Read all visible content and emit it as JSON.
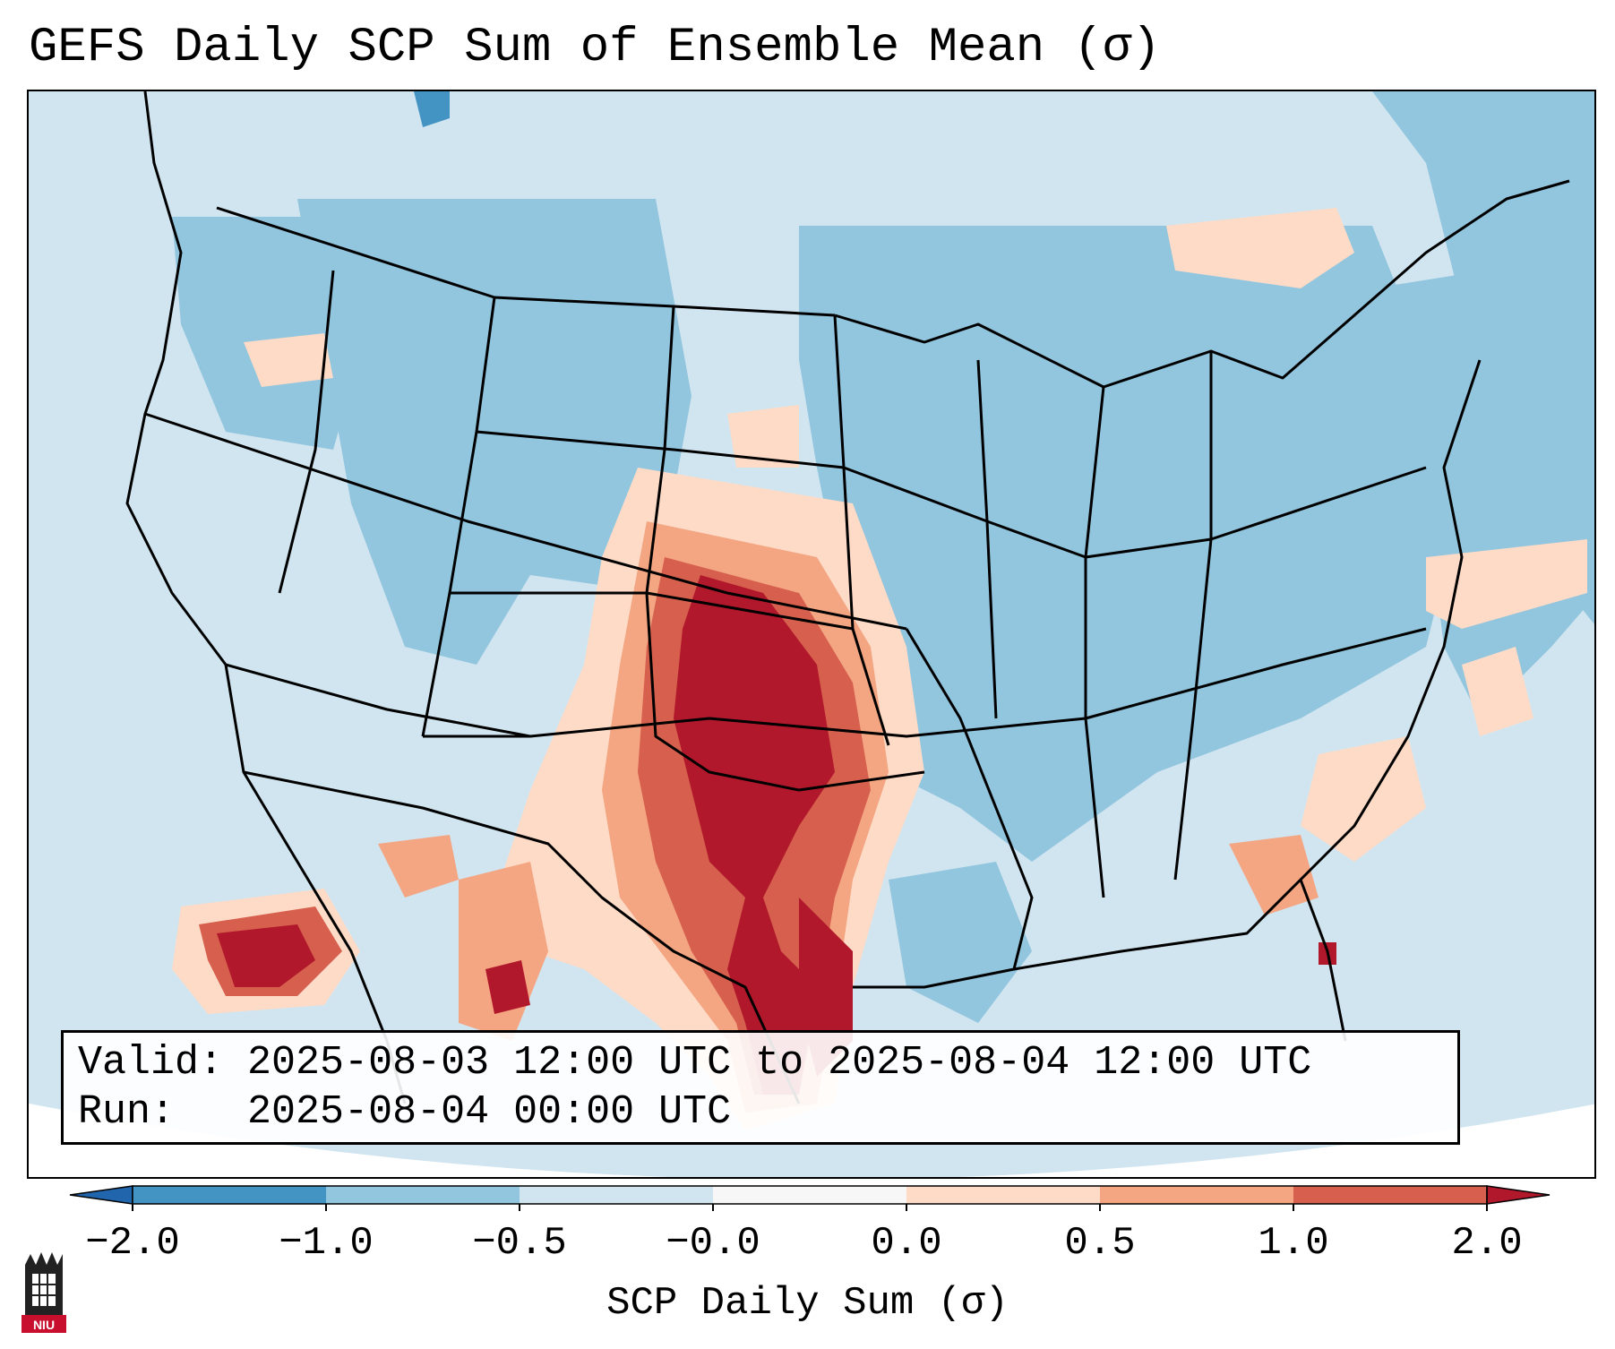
{
  "title": "GEFS Daily SCP Sum of Ensemble Mean (σ)",
  "info": {
    "valid_label": "Valid:",
    "valid_value": "2025-08-03 12:00 UTC to 2025-08-04 12:00 UTC",
    "run_label": "Run:",
    "run_value": "2025-08-04 00:00 UTC"
  },
  "colorbar": {
    "label": "SCP Daily Sum (σ)",
    "ticks": [
      "−2.0",
      "−1.0",
      "−0.5",
      "−0.0",
      "0.0",
      "0.5",
      "1.0",
      "2.0"
    ],
    "bins": [
      {
        "range": "< -2.0",
        "color": "#2166ac"
      },
      {
        "range": "-2.0 to -1.0",
        "color": "#4393c3"
      },
      {
        "range": "-1.0 to -0.5",
        "color": "#92c5de"
      },
      {
        "range": "-0.5 to -0.0",
        "color": "#d1e5f0"
      },
      {
        "range": "-0.0 to 0.0",
        "color": "#f7f7f7"
      },
      {
        "range": "0.0 to 0.5",
        "color": "#fddbc7"
      },
      {
        "range": "0.5 to 1.0",
        "color": "#f4a582"
      },
      {
        "range": "1.0 to 2.0",
        "color": "#d6604d"
      },
      {
        "range": "> 2.0",
        "color": "#b2182b"
      }
    ]
  },
  "map": {
    "region": "Contiguous United States",
    "field": "SCP daily sum anomaly",
    "hotspots": [
      {
        "area": "Western Oklahoma / Texas Panhandle",
        "level": "1.0 to 2.0+"
      },
      {
        "area": "Central & Southeast Texas",
        "level": "1.0 to 2.0+"
      },
      {
        "area": "Northwest Mexico (Sonora)",
        "level": "1.0 to 2.0+"
      },
      {
        "area": "Central Florida",
        "level": "0.5 to 2.0"
      }
    ]
  },
  "logo": {
    "text": "NIU",
    "color": "#c8102e"
  }
}
